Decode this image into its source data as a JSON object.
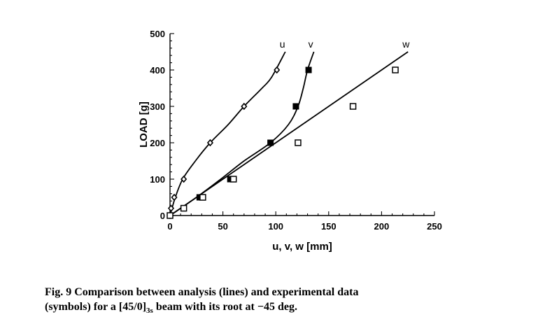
{
  "chart_data": {
    "type": "scatter",
    "title": "",
    "xlabel": "u, v, w  [mm]",
    "ylabel": "LOAD  [g]",
    "xlim": [
      0,
      250
    ],
    "ylim": [
      0,
      500
    ],
    "xticks": [
      0,
      50,
      100,
      150,
      200,
      250
    ],
    "yticks": [
      0,
      100,
      200,
      300,
      400,
      500
    ],
    "grid": false,
    "series": [
      {
        "name": "u",
        "marker": "diamond",
        "points": [
          [
            0,
            0
          ],
          [
            1,
            20
          ],
          [
            4,
            50
          ],
          [
            13,
            100
          ],
          [
            38,
            200
          ],
          [
            70,
            300
          ],
          [
            101,
            400
          ]
        ],
        "line": [
          [
            0,
            0
          ],
          [
            5,
            50
          ],
          [
            12,
            100
          ],
          [
            24,
            150
          ],
          [
            38,
            200
          ],
          [
            55,
            250
          ],
          [
            70,
            300
          ],
          [
            87,
            350
          ],
          [
            96,
            380
          ],
          [
            109,
            450
          ]
        ]
      },
      {
        "name": "v",
        "marker": "filled-square",
        "points": [
          [
            0,
            0
          ],
          [
            28,
            50
          ],
          [
            57,
            100
          ],
          [
            95,
            200
          ],
          [
            119,
            300
          ],
          [
            131,
            400
          ]
        ],
        "line": [
          [
            0,
            0
          ],
          [
            25,
            50
          ],
          [
            48,
            100
          ],
          [
            70,
            150
          ],
          [
            95,
            200
          ],
          [
            112,
            250
          ],
          [
            121,
            300
          ],
          [
            126,
            350
          ],
          [
            130,
            400
          ],
          [
            136,
            450
          ]
        ]
      },
      {
        "name": "w",
        "marker": "open-square",
        "points": [
          [
            0,
            0
          ],
          [
            13,
            20
          ],
          [
            31,
            50
          ],
          [
            60,
            100
          ],
          [
            121,
            200
          ],
          [
            173,
            300
          ],
          [
            213,
            400
          ]
        ],
        "line": [
          [
            0,
            0
          ],
          [
            25,
            50
          ],
          [
            50,
            100
          ],
          [
            75,
            150
          ],
          [
            100,
            200
          ],
          [
            125,
            250
          ],
          [
            150,
            300
          ],
          [
            175,
            350
          ],
          [
            200,
            400
          ],
          [
            225,
            450
          ]
        ]
      }
    ]
  },
  "caption": {
    "line1": "Fig. 9    Comparison between analysis (lines) and experimental data",
    "line2_pre": "(symbols) for a [45/0]",
    "line2_sub": "3s",
    "line2_post": " beam with its root at  −45 deg."
  }
}
